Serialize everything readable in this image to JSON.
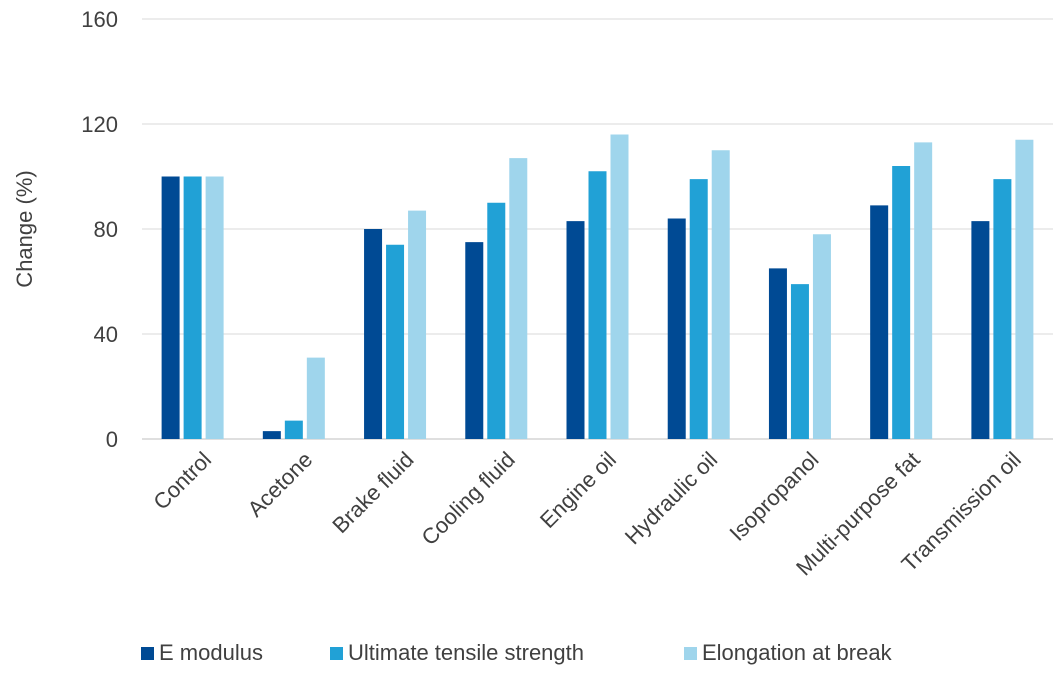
{
  "chart_data": {
    "type": "bar",
    "ylabel": "Change (%)",
    "xlabel": "",
    "ylim": [
      0,
      160
    ],
    "yticks": [
      0,
      40,
      80,
      120,
      160
    ],
    "grid": true,
    "legend_position": "bottom",
    "categories": [
      "Control",
      "Acetone",
      "Brake fluid",
      "Cooling fluid",
      "Engine oil",
      "Hydraulic oil",
      "Isopropanol",
      "Multi-purpose fat",
      "Transmission oil"
    ],
    "series": [
      {
        "name": "E modulus",
        "color": "#004A94",
        "values": [
          100,
          3,
          80,
          75,
          83,
          84,
          65,
          89,
          83
        ]
      },
      {
        "name": "Ultimate tensile strength",
        "color": "#21A1D6",
        "values": [
          100,
          7,
          74,
          90,
          102,
          99,
          59,
          104,
          99
        ]
      },
      {
        "name": "Elongation at break",
        "color": "#9FD5EC",
        "values": [
          100,
          31,
          87,
          107,
          116,
          110,
          78,
          113,
          114
        ]
      }
    ]
  }
}
